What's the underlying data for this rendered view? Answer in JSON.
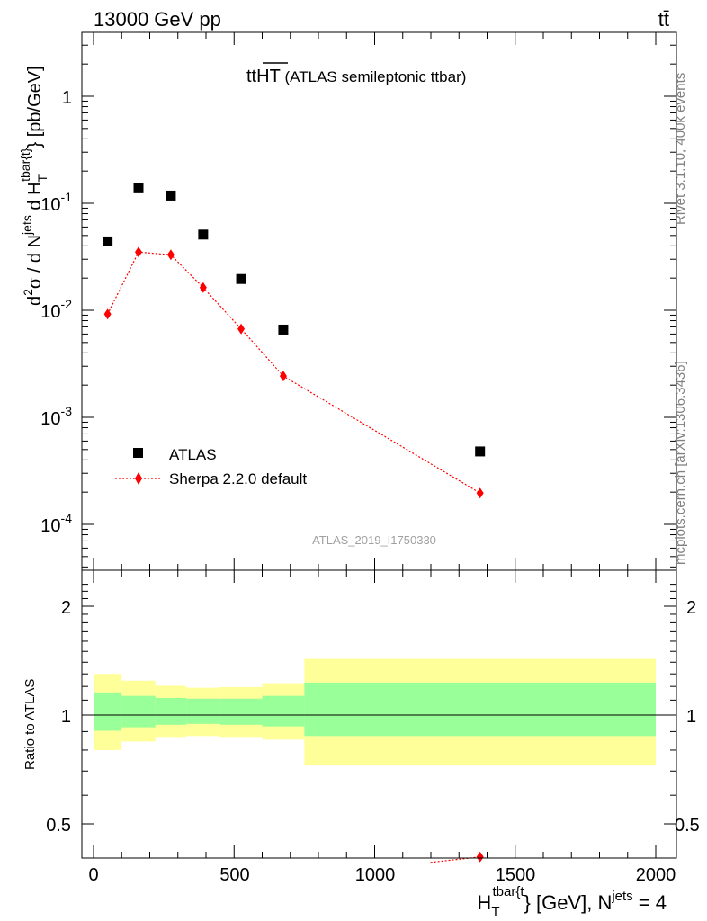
{
  "header": {
    "energy_label": "13000 GeV pp",
    "process_label": "tt̄"
  },
  "main_panel": {
    "plot_title_main": "tt",
    "plot_title_over": "HT",
    "plot_title_rest": " (ATLAS semileptonic ttbar)",
    "ylabel": {
      "d": "d",
      "sq": "2",
      "sigma": "σ / d N",
      "jets_sup": "jets",
      "dH": " d H",
      "t_sub": "T",
      "tbar_sup": "tbar{t}",
      "units": "} [pb/GeV]"
    },
    "yticks": [
      {
        "base": "10",
        "exp": "-4"
      },
      {
        "base": "10",
        "exp": "-3"
      },
      {
        "base": "10",
        "exp": "-2"
      },
      {
        "base": "10",
        "exp": "-1"
      },
      {
        "base": "1",
        "exp": ""
      }
    ],
    "analysis_id": "ATLAS_2019_I1750330",
    "legend": {
      "atlas_label": "ATLAS",
      "sherpa_label": "Sherpa 2.2.0 default"
    }
  },
  "ratio_panel": {
    "ylabel": "Ratio to ATLAS",
    "yticks": [
      "0.5",
      "1",
      "2"
    ],
    "xticks": [
      "0",
      "500",
      "1000",
      "1500",
      "2000"
    ],
    "xlabel": {
      "H": "H",
      "t_sub": "T",
      "tbar_sup": "tbar{t",
      "rest": "} [GeV], N",
      "jets_sup": "jets",
      "eq": " = 4"
    }
  },
  "side_text": {
    "rivet": "Rivet 3.1.10,  400k events",
    "mcplots": "mcplots.cern.ch [arXiv:1306.3436]"
  },
  "colors": {
    "atlas": "#000000",
    "sherpa": "#ff0000",
    "band_inner": "#99ff99",
    "band_outer": "#ffff99"
  },
  "chart_data": [
    {
      "type": "scatter",
      "panel": "main",
      "xlim": [
        -50,
        2050
      ],
      "ylim": [
        4e-05,
        4
      ],
      "log_y": true,
      "series": [
        {
          "name": "ATLAS",
          "marker": "square",
          "x": [
            50,
            160,
            275,
            390,
            525,
            675,
            1375
          ],
          "y": [
            0.044,
            0.138,
            0.118,
            0.051,
            0.0196,
            0.0066,
            0.00048
          ]
        },
        {
          "name": "Sherpa 2.2.0 default",
          "marker": "diamond",
          "line": "dotted",
          "x": [
            50,
            160,
            275,
            390,
            525,
            675,
            1375
          ],
          "y": [
            0.0092,
            0.035,
            0.033,
            0.0163,
            0.0067,
            0.00243,
            0.000196
          ]
        }
      ]
    },
    {
      "type": "area",
      "panel": "ratio",
      "xlim": [
        -50,
        2050
      ],
      "ylim": [
        0.4,
        2.4
      ],
      "log_y": true,
      "reference_line": 1,
      "bins": [
        {
          "x0": 0,
          "x1": 100,
          "inner": [
            0.905,
            1.155
          ],
          "outer": [
            0.8,
            1.3
          ]
        },
        {
          "x0": 100,
          "x1": 220,
          "inner": [
            0.925,
            1.13
          ],
          "outer": [
            0.845,
            1.245
          ]
        },
        {
          "x0": 220,
          "x1": 330,
          "inner": [
            0.94,
            1.115
          ],
          "outer": [
            0.87,
            1.205
          ]
        },
        {
          "x0": 330,
          "x1": 450,
          "inner": [
            0.945,
            1.11
          ],
          "outer": [
            0.875,
            1.19
          ]
        },
        {
          "x0": 450,
          "x1": 600,
          "inner": [
            0.94,
            1.11
          ],
          "outer": [
            0.87,
            1.195
          ]
        },
        {
          "x0": 600,
          "x1": 750,
          "inner": [
            0.93,
            1.13
          ],
          "outer": [
            0.855,
            1.225
          ]
        },
        {
          "x0": 750,
          "x1": 2000,
          "inner": [
            0.875,
            1.23
          ],
          "outer": [
            0.725,
            1.43
          ]
        }
      ],
      "sherpa_ratio": {
        "x": [
          1375
        ],
        "y": [
          0.405
        ]
      }
    }
  ]
}
